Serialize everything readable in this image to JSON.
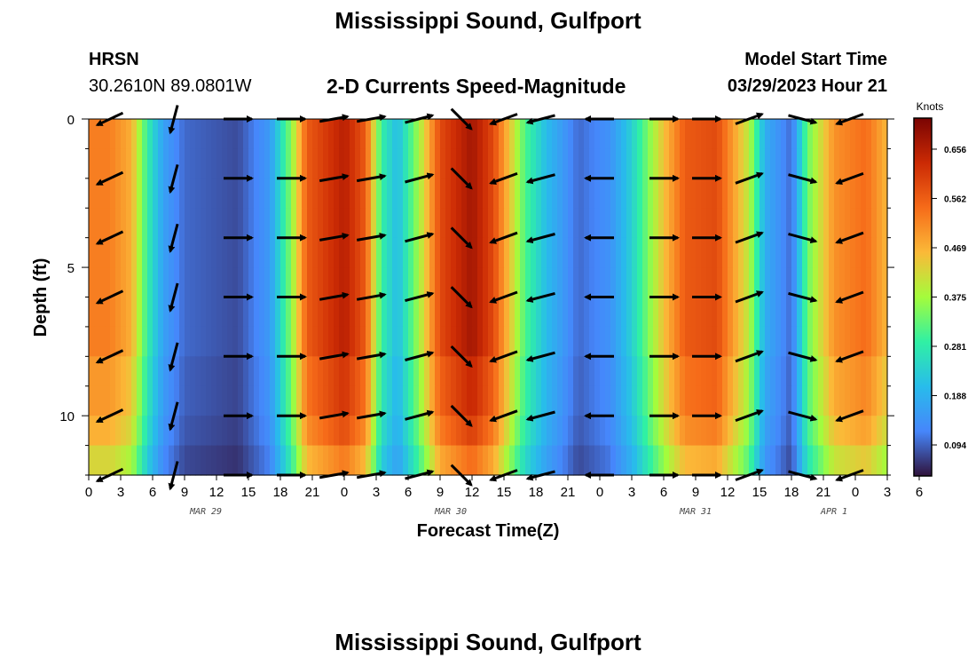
{
  "header": {
    "title": "Mississippi Sound, Gulfport",
    "station": "HRSN",
    "coordinates": "30.2610N  89.0801W",
    "subtitle": "2-D Currents Speed-Magnitude",
    "model_start_label": "Model Start Time",
    "model_start_value": "03/29/2023 Hour 21"
  },
  "footer": {
    "title": "Mississippi Sound, Gulfport"
  },
  "colorbar": {
    "label": "Knots",
    "ticks": [
      "0.656",
      "0.562",
      "0.469",
      "0.375",
      "0.281",
      "0.188",
      "0.094"
    ],
    "colors": [
      "#7a0403",
      "#cb2a04",
      "#f66b19",
      "#fbb938",
      "#a4fc3c",
      "#30f0a4",
      "#28bceb",
      "#4686fb",
      "#30123b"
    ]
  },
  "chart_data": {
    "type": "heatmap",
    "xlabel": "Forecast Time(Z)",
    "ylabel": "Depth (ft)",
    "x_range": [
      0,
      75
    ],
    "y_range": [
      0,
      12
    ],
    "y_ticks": [
      "0",
      "5",
      "10"
    ],
    "x_tick_labels": [
      "0",
      "3",
      "6",
      "9",
      "12",
      "15",
      "18",
      "21",
      "0",
      "3",
      "6",
      "9",
      "12",
      "15",
      "18",
      "21",
      "0",
      "3",
      "6",
      "9",
      "12",
      "15",
      "18",
      "21",
      "0",
      "3",
      "6"
    ],
    "date_labels": [
      {
        "label": "MAR 29",
        "hour": 11
      },
      {
        "label": "MAR 30",
        "hour": 34
      },
      {
        "label": "MAR 31",
        "hour": 57
      },
      {
        "label": "APR 1",
        "hour": 70
      }
    ],
    "speed_profile_knots": [
      {
        "hour": 0,
        "speed": 0.52
      },
      {
        "hour": 2,
        "speed": 0.52
      },
      {
        "hour": 4,
        "speed": 0.47
      },
      {
        "hour": 5.5,
        "speed": 0.3
      },
      {
        "hour": 7,
        "speed": 0.18
      },
      {
        "hour": 9,
        "speed": 0.12
      },
      {
        "hour": 14,
        "speed": 0.1
      },
      {
        "hour": 17,
        "speed": 0.17
      },
      {
        "hour": 19,
        "speed": 0.36
      },
      {
        "hour": 20.5,
        "speed": 0.56
      },
      {
        "hour": 24,
        "speed": 0.64
      },
      {
        "hour": 26,
        "speed": 0.56
      },
      {
        "hour": 27.5,
        "speed": 0.3
      },
      {
        "hour": 29,
        "speed": 0.22
      },
      {
        "hour": 31,
        "speed": 0.38
      },
      {
        "hour": 33,
        "speed": 0.58
      },
      {
        "hour": 36,
        "speed": 0.66
      },
      {
        "hour": 38,
        "speed": 0.58
      },
      {
        "hour": 41,
        "speed": 0.32
      },
      {
        "hour": 43,
        "speed": 0.22
      },
      {
        "hour": 46,
        "speed": 0.12
      },
      {
        "hour": 49,
        "speed": 0.16
      },
      {
        "hour": 51,
        "speed": 0.25
      },
      {
        "hour": 54,
        "speed": 0.45
      },
      {
        "hour": 56,
        "speed": 0.56
      },
      {
        "hour": 59,
        "speed": 0.58
      },
      {
        "hour": 62,
        "speed": 0.4
      },
      {
        "hour": 63.5,
        "speed": 0.2
      },
      {
        "hour": 66,
        "speed": 0.12
      },
      {
        "hour": 67.5,
        "speed": 0.34
      },
      {
        "hour": 70,
        "speed": 0.5
      },
      {
        "hour": 73,
        "speed": 0.54
      },
      {
        "hour": 75,
        "speed": 0.46
      }
    ],
    "arrow_hours": [
      2,
      8,
      14,
      19,
      23,
      26.5,
      31,
      35,
      39,
      42.5,
      48,
      54,
      58,
      62,
      67,
      71.5
    ],
    "arrow_depths": [
      0,
      2,
      4,
      6,
      8,
      10,
      12
    ],
    "arrow_directions_deg": [
      205,
      255,
      0,
      0,
      10,
      10,
      15,
      315,
      200,
      195,
      180,
      0,
      0,
      20,
      345,
      200
    ]
  }
}
